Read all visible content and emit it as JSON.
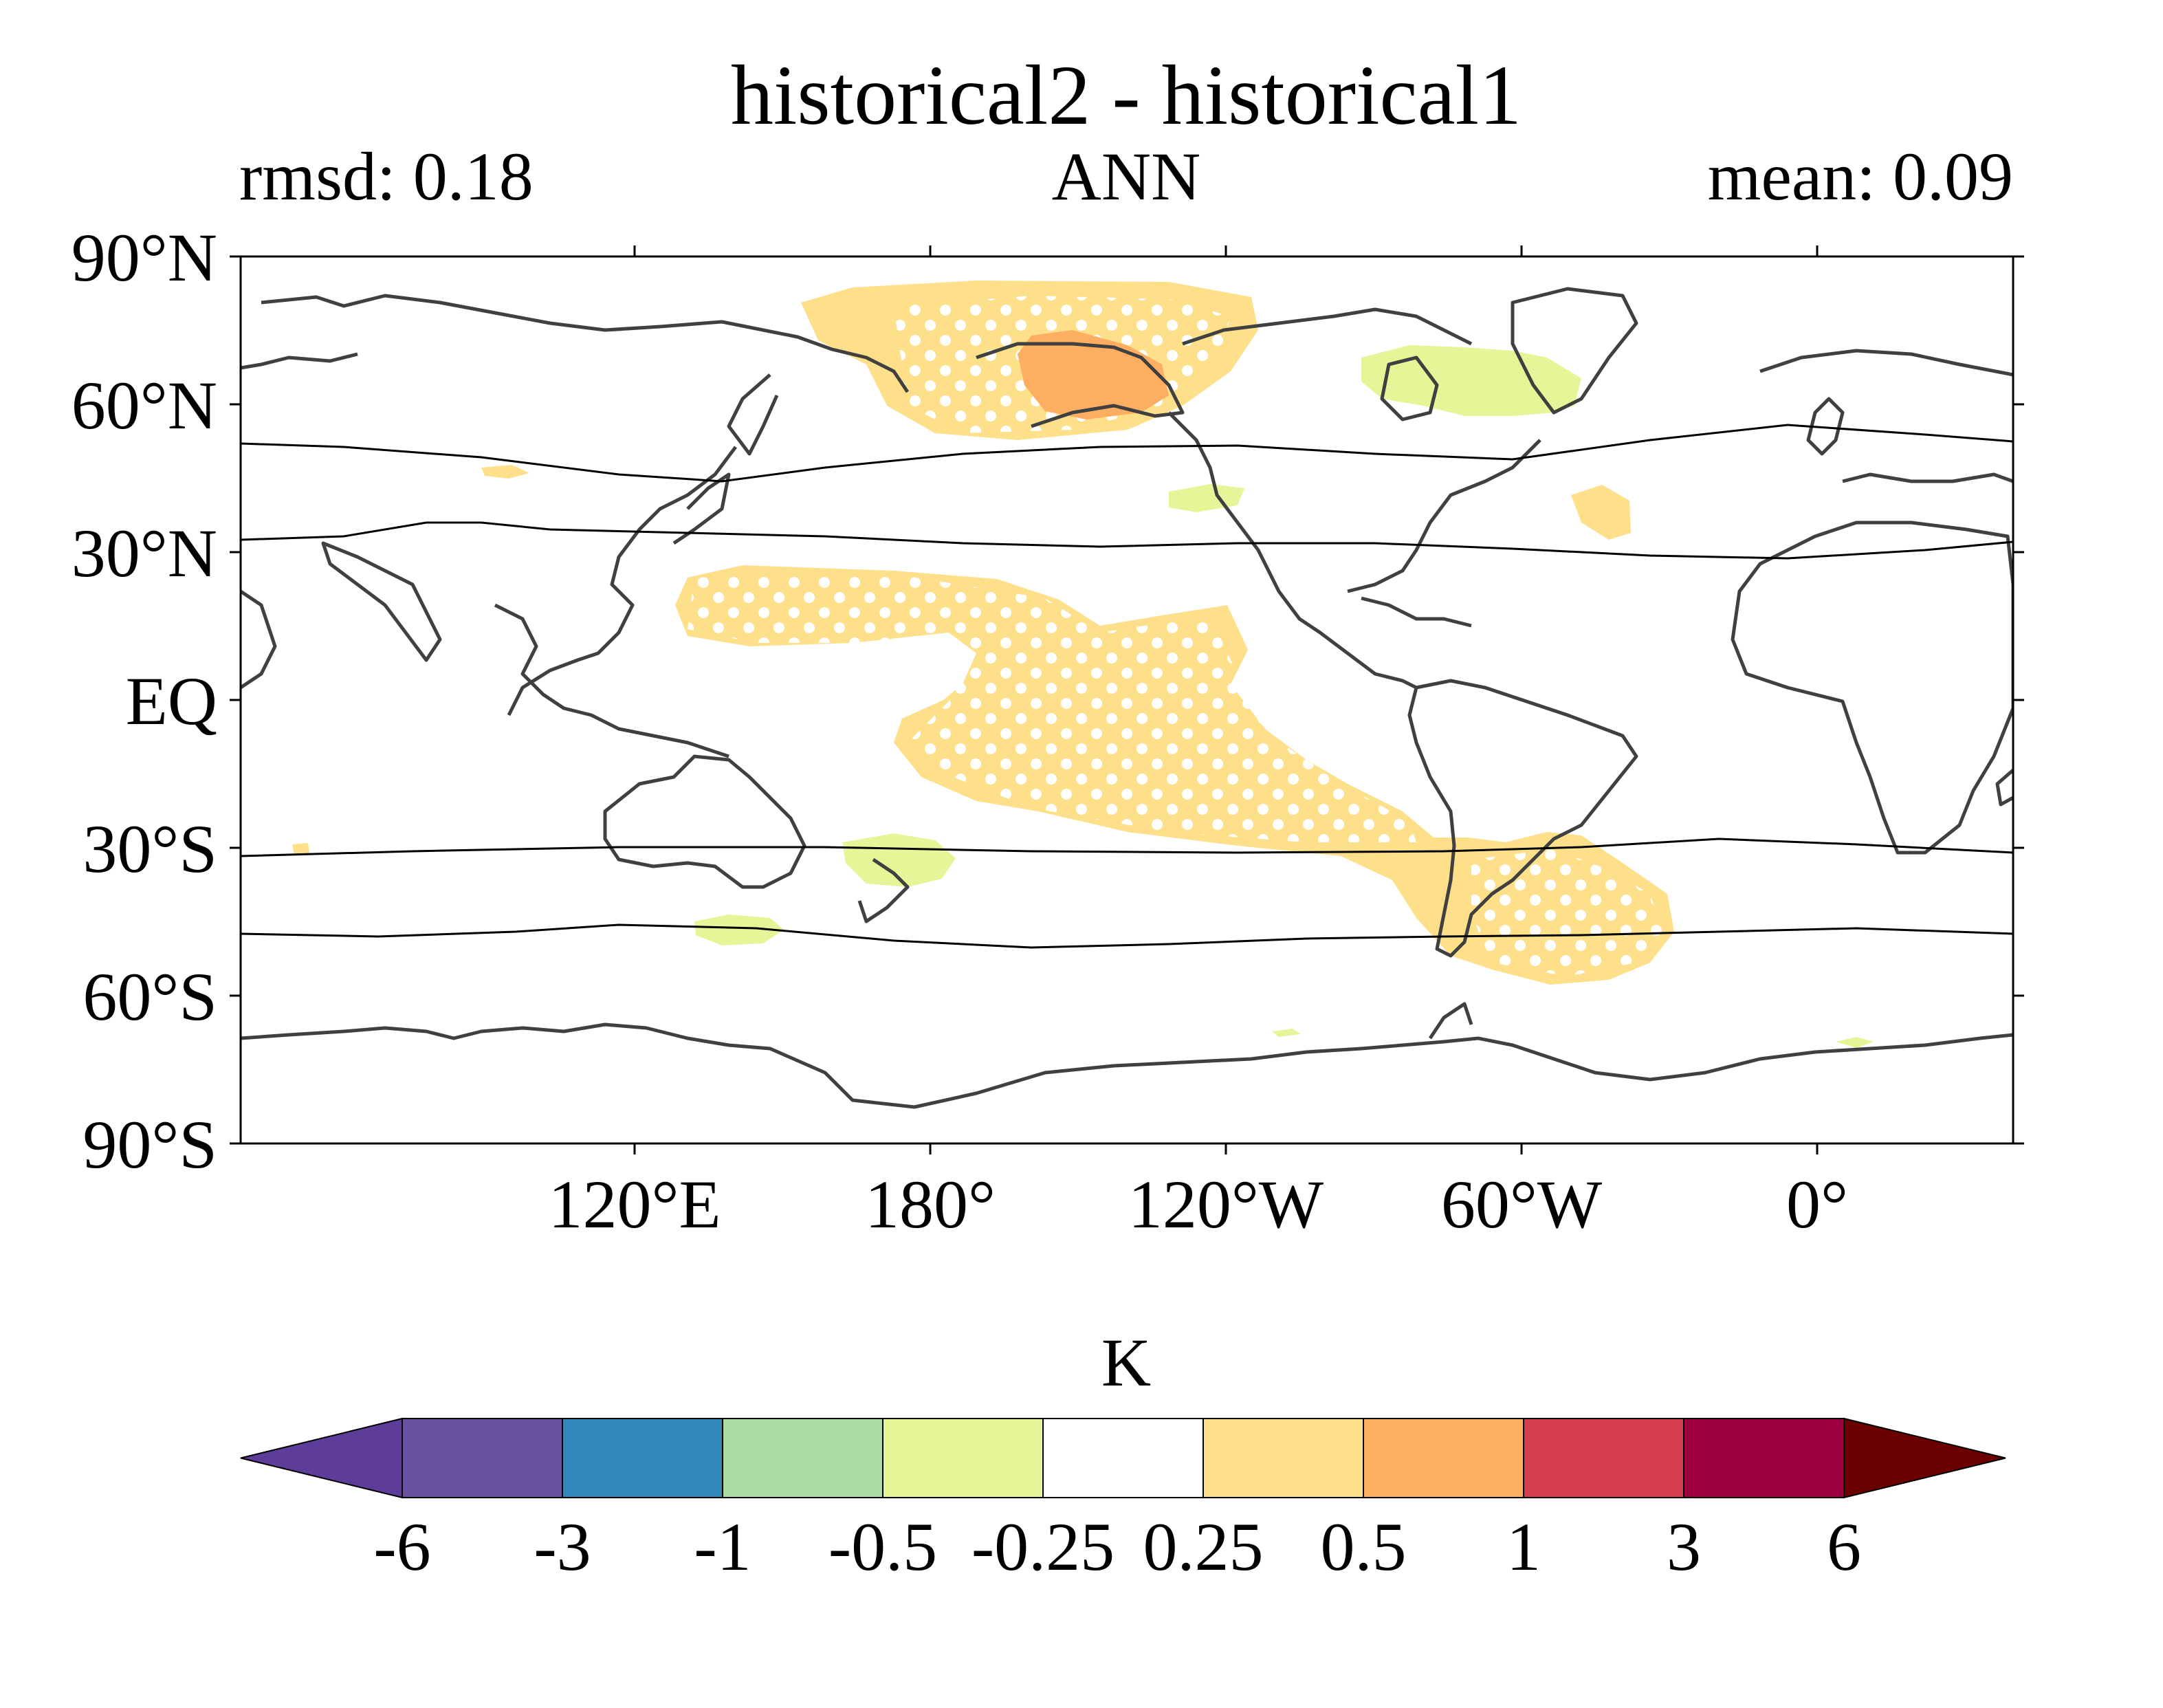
{
  "title": "historical2 - historical1",
  "subtitle": {
    "left": "rmsd: 0.18",
    "center": "ANN",
    "right": "mean: 0.09"
  },
  "map": {
    "projection": "PlateCarree, central longitude 180",
    "lat_ticks": [
      "90°N",
      "60°N",
      "30°N",
      "EQ",
      "30°S",
      "60°S",
      "90°S"
    ],
    "lon_ticks": [
      "120°E",
      "180°",
      "120°W",
      "60°W",
      "0°"
    ],
    "variable_units": "K",
    "stippling": "significant regions marked with white dots"
  },
  "colorbar": {
    "label": "K",
    "ticks": [
      "-6",
      "-3",
      "-1",
      "-0.5",
      "-0.25",
      "0.25",
      "0.5",
      "1",
      "3",
      "6"
    ],
    "colors": [
      "#5e3c99",
      "#6b51a1",
      "#3288bd",
      "#abdda4",
      "#e6f598",
      "#ffffff",
      "#fee08b",
      "#fdae61",
      "#d53e4f",
      "#9e0142",
      "#6a0000"
    ],
    "extend": "both"
  },
  "chart_data": {
    "type": "heatmap",
    "title": "historical2 - historical1",
    "units": "K",
    "levels": [
      -6,
      -3,
      -1,
      -0.5,
      -0.25,
      0.25,
      0.5,
      1,
      3,
      6
    ],
    "summary": {
      "rmsd": 0.18,
      "mean": 0.09,
      "season": "ANN"
    },
    "features": [
      {
        "region": "Bering Sea / Alaska",
        "range": "0.25 to 1"
      },
      {
        "region": "North Pacific subtropics to central-south Pacific",
        "range": "0.25 to 0.5"
      },
      {
        "region": "Southwest Atlantic / southern South America",
        "range": "0.25 to 0.5"
      },
      {
        "region": "Labrador / Baffin",
        "range": "-0.5 to -0.25"
      },
      {
        "region": "Tasman Sea",
        "range": "-0.5 to -0.25"
      }
    ]
  }
}
